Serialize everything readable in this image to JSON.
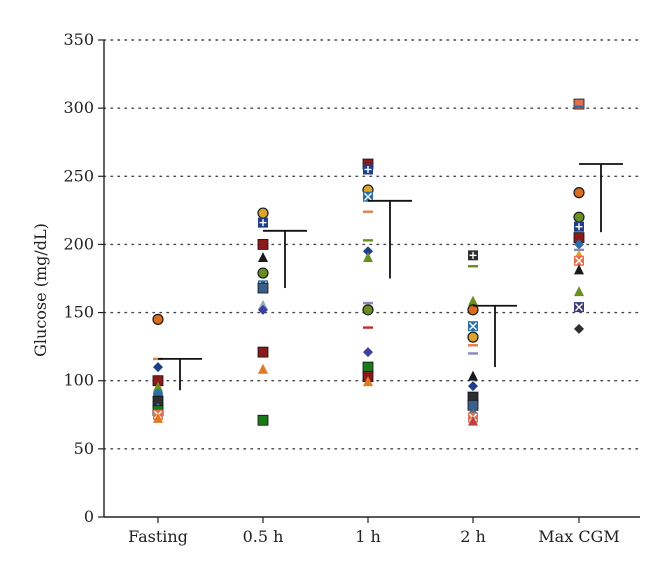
{
  "chart_data": {
    "type": "scatter",
    "title": "",
    "ylabel": "Glucose (mg/dL)",
    "xlabel": "",
    "categories": [
      "Fasting",
      "0.5 h",
      "1 h",
      "2 h",
      "Max CGM"
    ],
    "ylim": [
      0,
      350
    ],
    "yticks": [
      0,
      50,
      100,
      150,
      200,
      250,
      300,
      350
    ],
    "grid": "horizontal dotted",
    "points": [
      {
        "category": "Fasting",
        "value": 145,
        "marker": "circle",
        "color": "#d96d1e"
      },
      {
        "category": "Fasting",
        "value": 116,
        "marker": "dash",
        "color": "#e08050"
      },
      {
        "category": "Fasting",
        "value": 110,
        "marker": "diamond",
        "color": "#1f3e8a"
      },
      {
        "category": "Fasting",
        "value": 100,
        "marker": "square",
        "color": "#8b1a1a"
      },
      {
        "category": "Fasting",
        "value": 95,
        "marker": "triangle",
        "color": "#6b8e23"
      },
      {
        "category": "Fasting",
        "value": 90,
        "marker": "cross",
        "color": "#2a6fa8"
      },
      {
        "category": "Fasting",
        "value": 85,
        "marker": "square",
        "color": "#2e2e2e"
      },
      {
        "category": "Fasting",
        "value": 80,
        "marker": "diamond",
        "color": "#3b6ea5"
      },
      {
        "category": "Fasting",
        "value": 78,
        "marker": "square",
        "color": "#1a7a1a"
      },
      {
        "category": "Fasting",
        "value": 75,
        "marker": "x",
        "color": "#e07050"
      },
      {
        "category": "Fasting",
        "value": 72,
        "marker": "triangle",
        "color": "#e07a20"
      },
      {
        "category": "0.5 h",
        "value": 223,
        "marker": "circle",
        "color": "#d9a42a"
      },
      {
        "category": "0.5 h",
        "value": 216,
        "marker": "plus",
        "color": "#1f3e8a"
      },
      {
        "category": "0.5 h",
        "value": 200,
        "marker": "square",
        "color": "#8b1a1a"
      },
      {
        "category": "0.5 h",
        "value": 190,
        "marker": "triangle",
        "color": "#1a1a1a"
      },
      {
        "category": "0.5 h",
        "value": 179,
        "marker": "circle",
        "color": "#6b8e23"
      },
      {
        "category": "0.5 h",
        "value": 170,
        "marker": "x",
        "color": "#2a6fa8"
      },
      {
        "category": "0.5 h",
        "value": 168,
        "marker": "square",
        "color": "#3a5f8a"
      },
      {
        "category": "0.5 h",
        "value": 155,
        "marker": "triangle",
        "color": "#9ab"
      },
      {
        "category": "0.5 h",
        "value": 152,
        "marker": "diamond",
        "color": "#4040a0"
      },
      {
        "category": "0.5 h",
        "value": 121,
        "marker": "square",
        "color": "#8b1a1a"
      },
      {
        "category": "0.5 h",
        "value": 108,
        "marker": "triangle",
        "color": "#e07a20"
      },
      {
        "category": "0.5 h",
        "value": 71,
        "marker": "square",
        "color": "#1a7a1a"
      },
      {
        "category": "1 h",
        "value": 259,
        "marker": "square",
        "color": "#8b1a1a"
      },
      {
        "category": "1 h",
        "value": 255,
        "marker": "plus",
        "color": "#1f3e8a"
      },
      {
        "category": "1 h",
        "value": 240,
        "marker": "circle",
        "color": "#d9a42a"
      },
      {
        "category": "1 h",
        "value": 235,
        "marker": "x",
        "color": "#2a6fa8"
      },
      {
        "category": "1 h",
        "value": 224,
        "marker": "dash",
        "color": "#e08050"
      },
      {
        "category": "1 h",
        "value": 203,
        "marker": "dash",
        "color": "#6b8e23"
      },
      {
        "category": "1 h",
        "value": 195,
        "marker": "diamond",
        "color": "#1f3e8a"
      },
      {
        "category": "1 h",
        "value": 190,
        "marker": "triangle",
        "color": "#6b8e23"
      },
      {
        "category": "1 h",
        "value": 157,
        "marker": "dash",
        "color": "#88b"
      },
      {
        "category": "1 h",
        "value": 152,
        "marker": "circle",
        "color": "#6b8e23"
      },
      {
        "category": "1 h",
        "value": 139,
        "marker": "dash",
        "color": "#c03030"
      },
      {
        "category": "1 h",
        "value": 121,
        "marker": "diamond",
        "color": "#4040a0"
      },
      {
        "category": "1 h",
        "value": 110,
        "marker": "square",
        "color": "#1a7a1a"
      },
      {
        "category": "1 h",
        "value": 103,
        "marker": "square",
        "color": "#8b1a1a"
      },
      {
        "category": "1 h",
        "value": 99,
        "marker": "triangle",
        "color": "#e07a20"
      },
      {
        "category": "2 h",
        "value": 192,
        "marker": "plus",
        "color": "#2e2e2e"
      },
      {
        "category": "2 h",
        "value": 184,
        "marker": "dash",
        "color": "#6b8e23"
      },
      {
        "category": "2 h",
        "value": 158,
        "marker": "triangle",
        "color": "#6b8e23"
      },
      {
        "category": "2 h",
        "value": 152,
        "marker": "circle",
        "color": "#d96d1e"
      },
      {
        "category": "2 h",
        "value": 140,
        "marker": "x",
        "color": "#2a6fa8"
      },
      {
        "category": "2 h",
        "value": 132,
        "marker": "circle",
        "color": "#d9a42a"
      },
      {
        "category": "2 h",
        "value": 126,
        "marker": "dash",
        "color": "#e08050"
      },
      {
        "category": "2 h",
        "value": 120,
        "marker": "dash",
        "color": "#88b"
      },
      {
        "category": "2 h",
        "value": 103,
        "marker": "triangle",
        "color": "#1a1a1a"
      },
      {
        "category": "2 h",
        "value": 96,
        "marker": "diamond",
        "color": "#1f3e8a"
      },
      {
        "category": "2 h",
        "value": 88,
        "marker": "square",
        "color": "#2e2e2e"
      },
      {
        "category": "2 h",
        "value": 82,
        "marker": "square",
        "color": "#3a5f8a"
      },
      {
        "category": "2 h",
        "value": 76,
        "marker": "diamond",
        "color": "#3b6ea5"
      },
      {
        "category": "2 h",
        "value": 73,
        "marker": "x",
        "color": "#e07050"
      },
      {
        "category": "2 h",
        "value": 70,
        "marker": "triangle",
        "color": "#c04040"
      },
      {
        "category": "Max CGM",
        "value": 303,
        "marker": "square",
        "color": "#e07050"
      },
      {
        "category": "Max CGM",
        "value": 301,
        "marker": "dash",
        "color": "#2a6fa8"
      },
      {
        "category": "Max CGM",
        "value": 238,
        "marker": "circle",
        "color": "#d96d1e"
      },
      {
        "category": "Max CGM",
        "value": 220,
        "marker": "circle",
        "color": "#6b8e23"
      },
      {
        "category": "Max CGM",
        "value": 213,
        "marker": "plus",
        "color": "#1f3e8a"
      },
      {
        "category": "Max CGM",
        "value": 205,
        "marker": "square",
        "color": "#8b1a1a"
      },
      {
        "category": "Max CGM",
        "value": 200,
        "marker": "diamond",
        "color": "#2a6fa8"
      },
      {
        "category": "Max CGM",
        "value": 196,
        "marker": "dash",
        "color": "#88b"
      },
      {
        "category": "Max CGM",
        "value": 192,
        "marker": "triangle",
        "color": "#d9a42a"
      },
      {
        "category": "Max CGM",
        "value": 188,
        "marker": "x",
        "color": "#e07050"
      },
      {
        "category": "Max CGM",
        "value": 181,
        "marker": "triangle",
        "color": "#1a1a1a"
      },
      {
        "category": "Max CGM",
        "value": 165,
        "marker": "triangle",
        "color": "#6b8e23"
      },
      {
        "category": "Max CGM",
        "value": 154,
        "marker": "x",
        "color": "#3a3a7a"
      },
      {
        "category": "Max CGM",
        "value": 138,
        "marker": "diamond",
        "color": "#2e2e2e"
      }
    ],
    "mean_sd": [
      {
        "category": "Fasting",
        "mean": 116,
        "sd": 23
      },
      {
        "category": "0.5 h",
        "mean": 210,
        "sd": 42
      },
      {
        "category": "1 h",
        "mean": 232,
        "sd": 57
      },
      {
        "category": "2 h",
        "mean": 155,
        "sd": 45
      },
      {
        "category": "Max CGM",
        "mean": 259,
        "sd": 50
      }
    ]
  }
}
